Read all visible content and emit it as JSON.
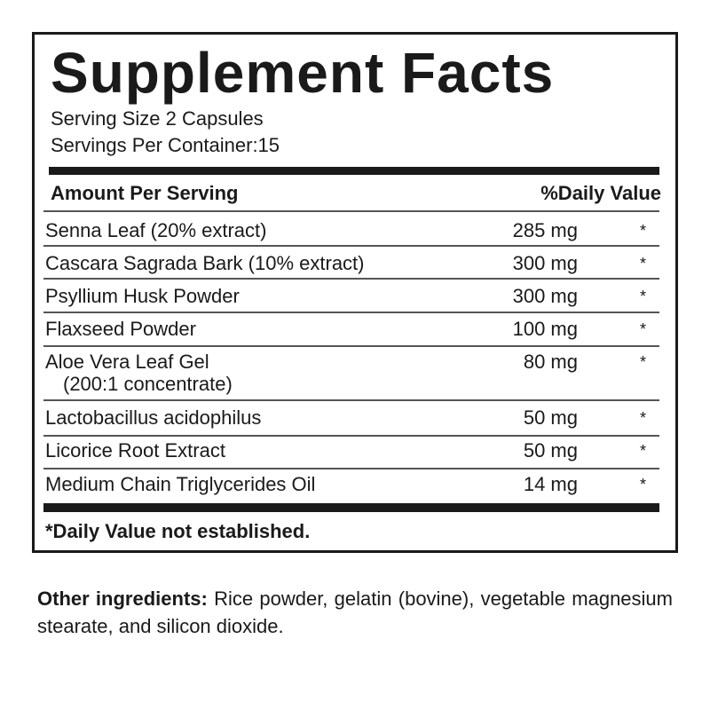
{
  "title": "Supplement Facts",
  "serving_size": "Serving Size 2 Capsules",
  "servings_per_container": "Servings Per Container:15",
  "header": {
    "amount": "Amount Per Serving",
    "dv": "%Daily Value"
  },
  "rows": [
    {
      "name": "Senna Leaf (20% extract)",
      "amount": "285 mg",
      "dv": "*"
    },
    {
      "name": "Cascara Sagrada Bark (10% extract)",
      "amount": "300 mg",
      "dv": "*"
    },
    {
      "name": "Psyllium Husk Powder",
      "amount": "300 mg",
      "dv": "*"
    },
    {
      "name": "Flaxseed Powder",
      "amount": "100 mg",
      "dv": "*"
    },
    {
      "name": "Aloe Vera Leaf Gel",
      "sub": "(200:1 concentrate)",
      "amount": "80 mg",
      "dv": "*"
    },
    {
      "name": "Lactobacillus acidophilus",
      "amount": "50 mg",
      "dv": "*"
    },
    {
      "name": "Licorice Root Extract",
      "amount": "50 mg",
      "dv": "*"
    },
    {
      "name": "Medium Chain Triglycerides Oil",
      "amount": "14 mg",
      "dv": "*"
    }
  ],
  "footnote": "*Daily Value not established.",
  "other": {
    "label": "Other ingredients:",
    "text": "Rice powder, gelatin (bovine), vegetable magnesium stearate, and silicon dioxide."
  }
}
